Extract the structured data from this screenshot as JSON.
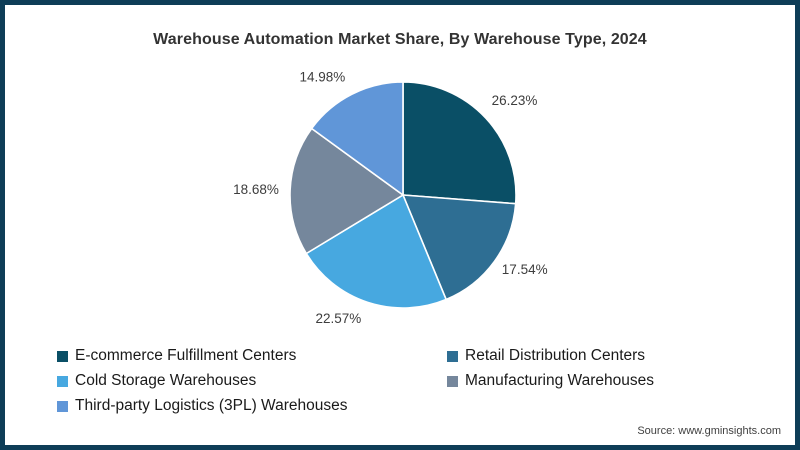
{
  "source_text": "Source: www.gminsights.com",
  "chart_data": {
    "type": "pie",
    "title": "Warehouse Automation Market Share, By Warehouse Type, 2024",
    "legend_position": "bottom-left, two columns",
    "start_angle_deg_from_top": 0,
    "direction": "clockwise",
    "slice_separator_color": "#ffffff",
    "frame_color": "#0e3d57",
    "series": [
      {
        "label": "E-commerce Fulfillment Centers",
        "value": 26.23,
        "display": "26.23%",
        "color": "#0a4f66"
      },
      {
        "label": "Retail Distribution Centers",
        "value": 17.54,
        "display": "17.54%",
        "color": "#2e6e93"
      },
      {
        "label": "Cold Storage Warehouses",
        "value": 22.57,
        "display": "22.57%",
        "color": "#47a8e0"
      },
      {
        "label": "Manufacturing Warehouses",
        "value": 18.68,
        "display": "18.68%",
        "color": "#75879c"
      },
      {
        "label": "Third-party Logistics (3PL) Warehouses",
        "value": 14.98,
        "display": "14.98%",
        "color": "#6096d8"
      }
    ]
  }
}
